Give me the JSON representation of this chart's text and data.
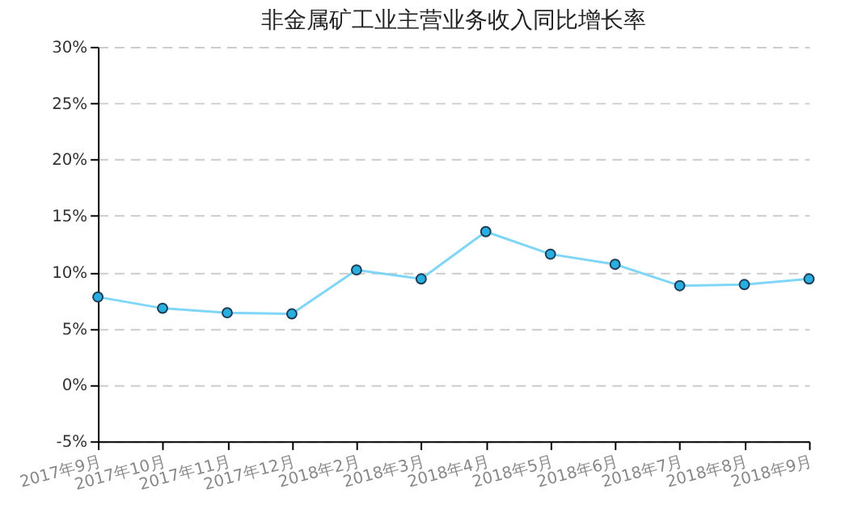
{
  "chart_data": {
    "type": "line",
    "title": "非金属矿工业主营业务收入同比增长率",
    "categories": [
      "2017年9月",
      "2017年10月",
      "2017年11月",
      "2017年12月",
      "2018年2月",
      "2018年3月",
      "2018年4月",
      "2018年5月",
      "2018年6月",
      "2018年7月",
      "2018年8月",
      "2018年9月"
    ],
    "series": [
      {
        "color": "#7fd6f7",
        "values": [
          7.8,
          6.8,
          6.4,
          6.3,
          10.2,
          9.4,
          13.6,
          11.6,
          10.7,
          8.8,
          8.9,
          9.4
        ]
      }
    ],
    "ylim": [
      -5,
      30
    ],
    "yticks": [
      {
        "value": -5,
        "label": "-5%"
      },
      {
        "value": 0,
        "label": "0%"
      },
      {
        "value": 5,
        "label": "5%"
      },
      {
        "value": 10,
        "label": "10%"
      },
      {
        "value": 15,
        "label": "15%"
      },
      {
        "value": 20,
        "label": "20%"
      },
      {
        "value": 25,
        "label": "25%"
      },
      {
        "value": 30,
        "label": "30%"
      }
    ],
    "grid": "y",
    "marker": "circle",
    "line_style": "solid"
  }
}
